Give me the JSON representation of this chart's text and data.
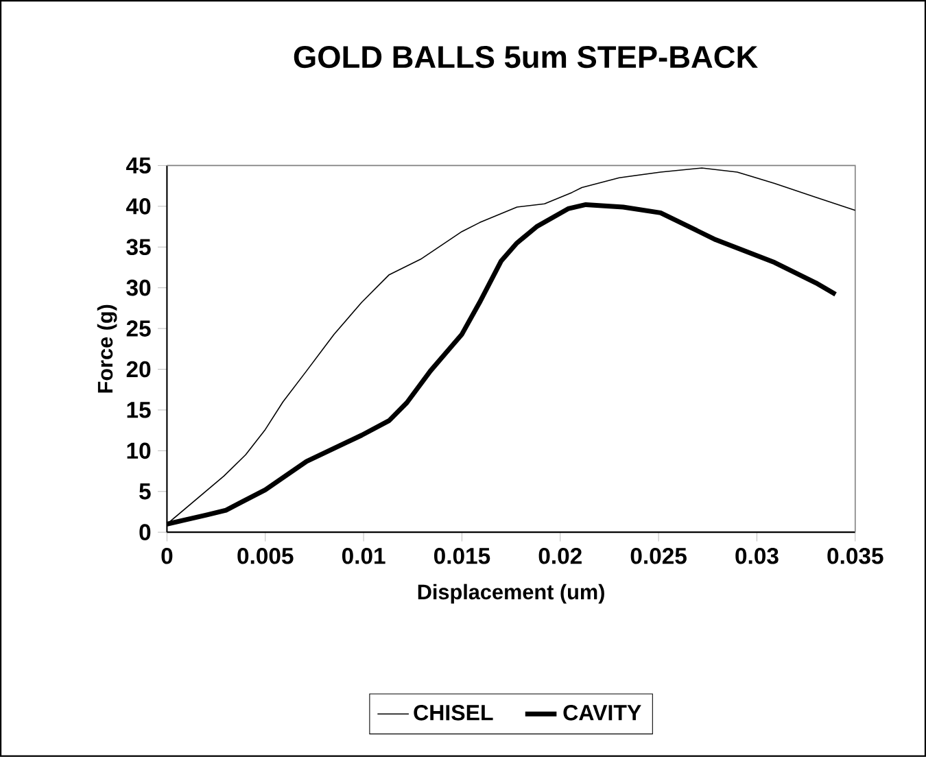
{
  "chart_data": {
    "type": "line",
    "title": "GOLD BALLS 5um STEP-BACK",
    "xlabel": "Displacement (um)",
    "ylabel": "Force (g)",
    "xlim": [
      0,
      0.035
    ],
    "xticks": [
      0,
      0.005,
      0.01,
      0.015,
      0.02,
      0.025,
      0.03,
      0.035
    ],
    "ylim": [
      0,
      45
    ],
    "yticks": [
      0,
      5,
      10,
      15,
      20,
      25,
      30,
      35,
      40,
      45
    ],
    "grid": false,
    "legend": "bottom",
    "marker": "none",
    "line_style": "solid",
    "series": [
      {
        "name": "CHISEL",
        "color": "#000000",
        "x": [
          0,
          0.0029,
          0.004,
          0.005,
          0.0059,
          0.0071,
          0.0085,
          0.0099,
          0.0113,
          0.0129,
          0.015,
          0.0159,
          0.0178,
          0.0192,
          0.0206,
          0.0211,
          0.023,
          0.0251,
          0.0272,
          0.029,
          0.0309,
          0.033,
          0.035
        ],
        "values": [
          1,
          6.9,
          9.5,
          12.6,
          16,
          19.8,
          24.3,
          28.2,
          31.6,
          33.5,
          36.9,
          38,
          39.9,
          40.3,
          41.7,
          42.3,
          43.5,
          44.2,
          44.7,
          44.2,
          42.8,
          41.1,
          39.5
        ]
      },
      {
        "name": "CAVITY",
        "color": "#000000",
        "x": [
          0,
          0.002,
          0.003,
          0.0038,
          0.005,
          0.0062,
          0.0071,
          0.0085,
          0.0099,
          0.0113,
          0.0122,
          0.0134,
          0.015,
          0.0159,
          0.017,
          0.0178,
          0.0188,
          0.0204,
          0.0213,
          0.0232,
          0.0251,
          0.0279,
          0.0309,
          0.033,
          0.034
        ],
        "values": [
          1,
          2.1,
          2.7,
          3.7,
          5.2,
          7.2,
          8.7,
          10.3,
          11.9,
          13.7,
          15.9,
          19.8,
          24.3,
          28.2,
          33.3,
          35.5,
          37.5,
          39.7,
          40.2,
          39.9,
          39.2,
          35.9,
          33.1,
          30.6,
          29.2
        ]
      }
    ]
  }
}
